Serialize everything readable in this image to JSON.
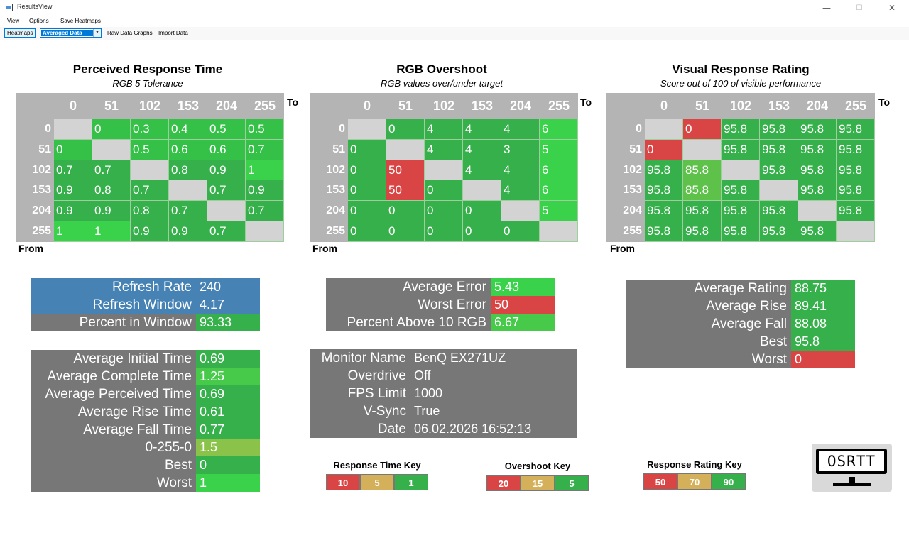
{
  "window": {
    "title": "ResultsView",
    "min": "—",
    "max": "☐",
    "close": "✕"
  },
  "menu": [
    "View",
    "Options",
    "Save Heatmaps"
  ],
  "toolbar": {
    "heatmaps": "Heatmaps",
    "selected": "Averaged Data",
    "raw": "Raw Data Graphs",
    "import": "Import Data"
  },
  "labels": {
    "to": "To",
    "from": "From"
  },
  "heatmaps": [
    {
      "title": "Perceived Response Time",
      "subtitle": "RGB 5 Tolerance",
      "columns": [
        "0",
        "51",
        "102",
        "153",
        "204",
        "255"
      ],
      "rows": [
        {
          "label": "0",
          "cells": [
            "",
            "0",
            "0.3",
            "0.4",
            "0.5",
            "0.5"
          ]
        },
        {
          "label": "51",
          "cells": [
            "0",
            "",
            "0.5",
            "0.6",
            "0.6",
            "0.7"
          ]
        },
        {
          "label": "102",
          "cells": [
            "0.7",
            "0.7",
            "",
            "0.8",
            "0.9",
            "1"
          ]
        },
        {
          "label": "153",
          "cells": [
            "0.9",
            "0.8",
            "0.7",
            "",
            "0.7",
            "0.9"
          ]
        },
        {
          "label": "204",
          "cells": [
            "0.9",
            "0.9",
            "0.8",
            "0.7",
            "",
            "0.7"
          ]
        },
        {
          "label": "255",
          "cells": [
            "1",
            "1",
            "0.9",
            "0.9",
            "0.7",
            ""
          ]
        }
      ],
      "colors": [
        [
          "#d3d3d3",
          "#35c048",
          "#35c048",
          "#35c048",
          "#35c048",
          "#35c048"
        ],
        [
          "#35c048",
          "#d3d3d3",
          "#35c048",
          "#35c048",
          "#35c048",
          "#35c048"
        ],
        [
          "#35b04a",
          "#35b04a",
          "#d3d3d3",
          "#35b04a",
          "#35b04a",
          "#3ad24a"
        ],
        [
          "#35b04a",
          "#35b04a",
          "#35b04a",
          "#d3d3d3",
          "#35b04a",
          "#35b04a"
        ],
        [
          "#35b04a",
          "#35b04a",
          "#35b04a",
          "#35b04a",
          "#d3d3d3",
          "#35b04a"
        ],
        [
          "#3ad24a",
          "#3ad24a",
          "#35b04a",
          "#35b04a",
          "#35b04a",
          "#d3d3d3"
        ]
      ]
    },
    {
      "title": "RGB Overshoot",
      "subtitle": "RGB values over/under target",
      "columns": [
        "0",
        "51",
        "102",
        "153",
        "204",
        "255"
      ],
      "rows": [
        {
          "label": "0",
          "cells": [
            "",
            "0",
            "4",
            "4",
            "4",
            "6"
          ]
        },
        {
          "label": "51",
          "cells": [
            "0",
            "",
            "4",
            "4",
            "3",
            "5"
          ]
        },
        {
          "label": "102",
          "cells": [
            "0",
            "50",
            "",
            "4",
            "4",
            "6"
          ]
        },
        {
          "label": "153",
          "cells": [
            "0",
            "50",
            "0",
            "",
            "4",
            "6"
          ]
        },
        {
          "label": "204",
          "cells": [
            "0",
            "0",
            "0",
            "0",
            "",
            "5"
          ]
        },
        {
          "label": "255",
          "cells": [
            "0",
            "0",
            "0",
            "0",
            "0",
            ""
          ]
        }
      ],
      "colors": [
        [
          "#d3d3d3",
          "#35b04a",
          "#35b04a",
          "#35b04a",
          "#35b04a",
          "#3ad24a"
        ],
        [
          "#35b04a",
          "#d3d3d3",
          "#35b04a",
          "#35b04a",
          "#35b04a",
          "#3ad24a"
        ],
        [
          "#35b04a",
          "#d94444",
          "#d3d3d3",
          "#35b04a",
          "#35b04a",
          "#3ad24a"
        ],
        [
          "#35b04a",
          "#d94444",
          "#35b04a",
          "#d3d3d3",
          "#35b04a",
          "#3ad24a"
        ],
        [
          "#35b04a",
          "#35b04a",
          "#35b04a",
          "#35b04a",
          "#d3d3d3",
          "#3ad24a"
        ],
        [
          "#35b04a",
          "#35b04a",
          "#35b04a",
          "#35b04a",
          "#35b04a",
          "#d3d3d3"
        ]
      ]
    },
    {
      "title": "Visual Response Rating",
      "subtitle": "Score out of 100 of visible performance",
      "columns": [
        "0",
        "51",
        "102",
        "153",
        "204",
        "255"
      ],
      "rows": [
        {
          "label": "0",
          "cells": [
            "",
            "0",
            "95.8",
            "95.8",
            "95.8",
            "95.8"
          ]
        },
        {
          "label": "51",
          "cells": [
            "0",
            "",
            "95.8",
            "95.8",
            "95.8",
            "95.8"
          ]
        },
        {
          "label": "102",
          "cells": [
            "95.8",
            "85.8",
            "",
            "95.8",
            "95.8",
            "95.8"
          ]
        },
        {
          "label": "153",
          "cells": [
            "95.8",
            "85.8",
            "95.8",
            "",
            "95.8",
            "95.8"
          ]
        },
        {
          "label": "204",
          "cells": [
            "95.8",
            "95.8",
            "95.8",
            "95.8",
            "",
            "95.8"
          ]
        },
        {
          "label": "255",
          "cells": [
            "95.8",
            "95.8",
            "95.8",
            "95.8",
            "95.8",
            ""
          ]
        }
      ],
      "colors": [
        [
          "#d3d3d3",
          "#d94444",
          "#35b04a",
          "#35b04a",
          "#35b04a",
          "#35b04a"
        ],
        [
          "#d94444",
          "#d3d3d3",
          "#35b04a",
          "#35b04a",
          "#35b04a",
          "#35b04a"
        ],
        [
          "#35b04a",
          "#5ec24a",
          "#d3d3d3",
          "#35b04a",
          "#35b04a",
          "#35b04a"
        ],
        [
          "#35b04a",
          "#5ec24a",
          "#35b04a",
          "#d3d3d3",
          "#35b04a",
          "#35b04a"
        ],
        [
          "#35b04a",
          "#35b04a",
          "#35b04a",
          "#35b04a",
          "#d3d3d3",
          "#35b04a"
        ],
        [
          "#35b04a",
          "#35b04a",
          "#35b04a",
          "#35b04a",
          "#35b04a",
          "#d3d3d3"
        ]
      ]
    }
  ],
  "refresh": [
    {
      "label": "Refresh Rate",
      "value": "240",
      "bg": "#4682b4",
      "vbg": "#4682b4"
    },
    {
      "label": "Refresh Window",
      "value": "4.17",
      "bg": "#4682b4",
      "vbg": "#4682b4"
    },
    {
      "label": "Percent in Window",
      "value": "93.33",
      "bg": "#777777",
      "vbg": "#35b04a"
    }
  ],
  "times": [
    {
      "label": "Average Initial Time",
      "value": "0.69",
      "vbg": "#35b04a"
    },
    {
      "label": "Average Complete Time",
      "value": "1.25",
      "vbg": "#47c94a"
    },
    {
      "label": "Average Perceived Time",
      "value": "0.69",
      "vbg": "#35b04a"
    },
    {
      "label": "Average Rise Time",
      "value": "0.61",
      "vbg": "#35b04a"
    },
    {
      "label": "Average Fall Time",
      "value": "0.77",
      "vbg": "#35b04a"
    },
    {
      "label": "0-255-0",
      "value": "1.5",
      "vbg": "#8bc34a"
    },
    {
      "label": "Best",
      "value": "0",
      "vbg": "#35b04a"
    },
    {
      "label": "Worst",
      "value": "1",
      "vbg": "#3ad24a"
    }
  ],
  "overshoot": [
    {
      "label": "Average Error",
      "value": "5.43",
      "vbg": "#3ad24a"
    },
    {
      "label": "Worst Error",
      "value": "50",
      "vbg": "#d94444"
    },
    {
      "label": "Percent Above 10 RGB",
      "value": "6.67",
      "vbg": "#47c94a"
    }
  ],
  "monitor": [
    {
      "label": "Monitor Name",
      "value": "BenQ EX271UZ"
    },
    {
      "label": "Overdrive",
      "value": "Off"
    },
    {
      "label": "FPS Limit",
      "value": "1000"
    },
    {
      "label": "V-Sync",
      "value": "True"
    },
    {
      "label": "Date",
      "value": "06.02.2026 16:52:13"
    }
  ],
  "rating": [
    {
      "label": "Average Rating",
      "value": "88.75",
      "vbg": "#35b04a"
    },
    {
      "label": "Average Rise",
      "value": "89.41",
      "vbg": "#35b04a"
    },
    {
      "label": "Average Fall",
      "value": "88.08",
      "vbg": "#35b04a"
    },
    {
      "label": "Best",
      "value": "95.8",
      "vbg": "#35b04a"
    },
    {
      "label": "Worst",
      "value": "0",
      "vbg": "#d94444"
    }
  ],
  "keys": [
    {
      "title": "Response Time Key",
      "values": [
        "10",
        "5",
        "1"
      ]
    },
    {
      "title": "Overshoot Key",
      "values": [
        "20",
        "15",
        "5"
      ]
    },
    {
      "title": "Response Rating Key",
      "values": [
        "50",
        "70",
        "90"
      ]
    }
  ],
  "key_colors": [
    "#d94444",
    "#d4b05a",
    "#35b04a"
  ],
  "logo": {
    "text": "OSRTT"
  }
}
